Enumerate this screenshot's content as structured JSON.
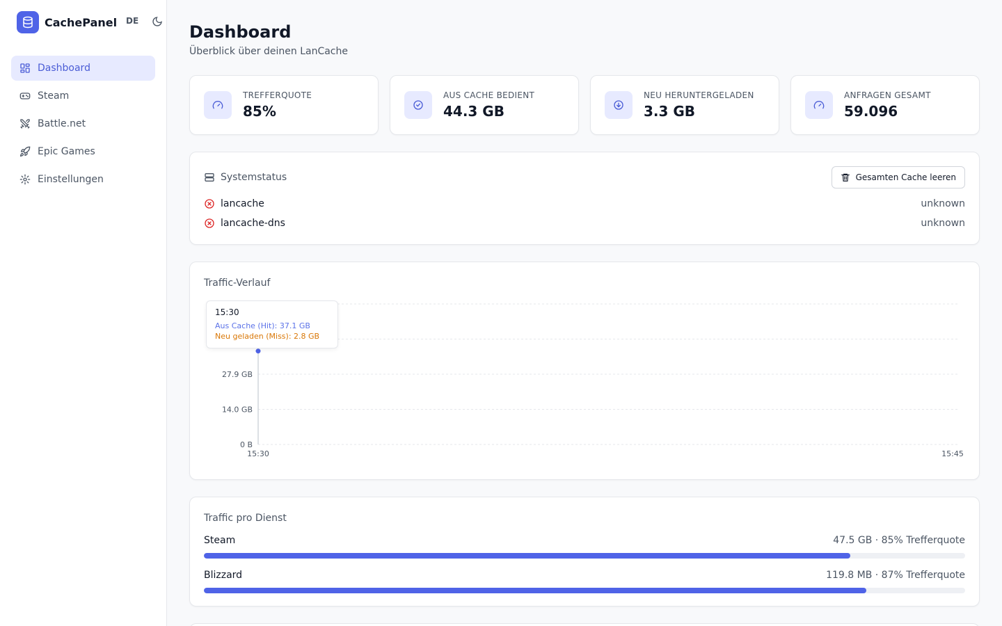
{
  "brand": {
    "name": "CachePanel",
    "lang": "DE"
  },
  "nav": [
    {
      "label": "Dashboard",
      "icon": "dashboard-icon",
      "active": true
    },
    {
      "label": "Steam",
      "icon": "gamepad-icon",
      "active": false
    },
    {
      "label": "Battle.net",
      "icon": "swords-icon",
      "active": false
    },
    {
      "label": "Epic Games",
      "icon": "rocket-icon",
      "active": false
    },
    {
      "label": "Einstellungen",
      "icon": "gear-icon",
      "active": false
    }
  ],
  "header": {
    "title": "Dashboard",
    "subtitle": "Überblick über deinen LanCache"
  },
  "stats": [
    {
      "label": "TREFFERQUOTE",
      "value": "85%",
      "icon": "gauge-icon"
    },
    {
      "label": "AUS CACHE BEDIENT",
      "value": "44.3 GB",
      "icon": "check-circle-icon"
    },
    {
      "label": "NEU HERUNTERGELADEN",
      "value": "3.3 GB",
      "icon": "download-circle-icon"
    },
    {
      "label": "ANFRAGEN GESAMT",
      "value": "59.096",
      "icon": "gauge-icon"
    }
  ],
  "system_status": {
    "title": "Systemstatus",
    "clear_button": "Gesamten Cache leeren",
    "services": [
      {
        "name": "lancache",
        "state": "unknown"
      },
      {
        "name": "lancache-dns",
        "state": "unknown"
      }
    ]
  },
  "traffic": {
    "title": "Traffic-Verlauf",
    "tooltip": {
      "time": "15:30",
      "hit": "Aus Cache (Hit): 37.1 GB",
      "miss": "Neu geladen (Miss): 2.8 GB"
    }
  },
  "chart_data": {
    "type": "line",
    "title": "Traffic-Verlauf",
    "x_ticks": [
      "15:30",
      "15:45"
    ],
    "y_ticks": [
      "0 B",
      "14.0 GB",
      "27.9 GB"
    ],
    "ylim": [
      0,
      55.8
    ],
    "series": [
      {
        "name": "Aus Cache (Hit)",
        "points": [
          {
            "x": "15:30",
            "y": 37.1
          }
        ],
        "color": "#4f63e7"
      },
      {
        "name": "Neu geladen (Miss)",
        "points": [
          {
            "x": "15:30",
            "y": 2.8
          }
        ],
        "color": "#d97706"
      }
    ],
    "grid": true
  },
  "service_traffic": {
    "title": "Traffic pro Dienst",
    "items": [
      {
        "name": "Steam",
        "detail": "47.5 GB · 85% Trefferquote",
        "fraction": 0.849
      },
      {
        "name": "Blizzard",
        "detail": "119.8 MB · 87% Trefferquote",
        "fraction": 0.87
      }
    ]
  },
  "colors": {
    "accent": "#4f63e7",
    "error": "#dc2626",
    "miss": "#d97706"
  }
}
